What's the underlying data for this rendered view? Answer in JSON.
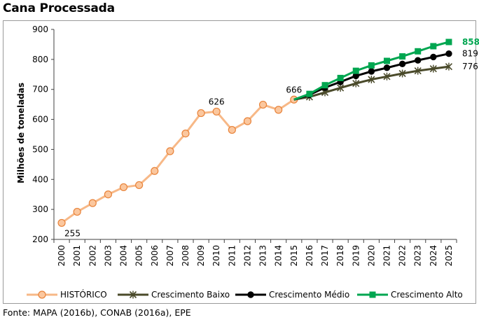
{
  "chart_data": {
    "type": "line",
    "title": "Cana Processada",
    "ylabel": "Milhões de toneladas",
    "xlabel": "",
    "ylim": [
      200,
      900
    ],
    "yticks": [
      200,
      300,
      400,
      500,
      600,
      700,
      800,
      900
    ],
    "categories": [
      "2000",
      "2001",
      "2002",
      "2003",
      "2004",
      "2005",
      "2006",
      "2007",
      "2008",
      "2009",
      "2010",
      "2011",
      "2012",
      "2013",
      "2014",
      "2015",
      "2016",
      "2017",
      "2018",
      "2019",
      "2020",
      "2021",
      "2022",
      "2023",
      "2024",
      "2025"
    ],
    "legend_position": "bottom",
    "grid": false,
    "series": [
      {
        "name": "HISTÓRICO",
        "color": "#f7b887",
        "marker": "circle",
        "x": [
          "2000",
          "2001",
          "2002",
          "2003",
          "2004",
          "2005",
          "2006",
          "2007",
          "2008",
          "2009",
          "2010",
          "2011",
          "2012",
          "2013",
          "2014",
          "2015"
        ],
        "values": [
          255,
          292,
          321,
          350,
          374,
          381,
          428,
          494,
          553,
          621,
          626,
          565,
          594,
          649,
          632,
          666
        ]
      },
      {
        "name": "Crescimento Baixo",
        "color": "#4a4a2a",
        "marker": "x",
        "x": [
          "2015",
          "2016",
          "2017",
          "2018",
          "2019",
          "2020",
          "2021",
          "2022",
          "2023",
          "2024",
          "2025"
        ],
        "values": [
          666,
          675,
          690,
          705,
          720,
          733,
          743,
          753,
          762,
          769,
          776
        ]
      },
      {
        "name": "Crescimento Médio",
        "color": "#000000",
        "marker": "circle",
        "x": [
          "2015",
          "2016",
          "2017",
          "2018",
          "2019",
          "2020",
          "2021",
          "2022",
          "2023",
          "2024",
          "2025"
        ],
        "values": [
          666,
          682,
          706,
          725,
          745,
          760,
          772,
          785,
          797,
          808,
          819
        ]
      },
      {
        "name": "Crescimento Alto",
        "color": "#00a650",
        "marker": "square",
        "x": [
          "2015",
          "2016",
          "2017",
          "2018",
          "2019",
          "2020",
          "2021",
          "2022",
          "2023",
          "2024",
          "2025"
        ],
        "values": [
          666,
          685,
          714,
          738,
          762,
          780,
          795,
          810,
          827,
          844,
          858
        ]
      }
    ],
    "annotations": [
      {
        "text": "255",
        "x": "2000",
        "y": 255,
        "place": "below"
      },
      {
        "text": "626",
        "x": "2010",
        "y": 626,
        "place": "above"
      },
      {
        "text": "666",
        "x": "2015",
        "y": 666,
        "place": "above"
      },
      {
        "text": "858",
        "x": "2025",
        "y": 858,
        "place": "right",
        "color": "#00a650",
        "bold": true
      },
      {
        "text": "819",
        "x": "2025",
        "y": 819,
        "place": "right"
      },
      {
        "text": "776",
        "x": "2025",
        "y": 776,
        "place": "right"
      }
    ]
  },
  "source": "Fonte: MAPA (2016b), CONAB (2016a), EPE"
}
